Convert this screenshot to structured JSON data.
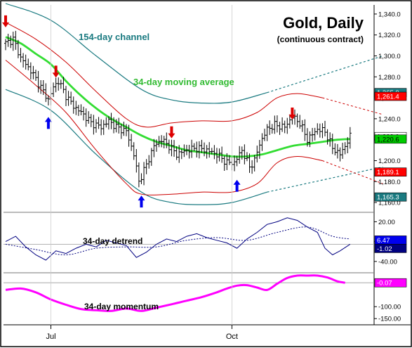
{
  "title": "Gold, Daily",
  "subtitle": "(continuous contract)",
  "labels": {
    "channel": "154-day channel",
    "moving_average": "34-day moving average",
    "detrend": "34-day detrend",
    "momentum": "34-day momentum"
  },
  "colors": {
    "frame": "#000000",
    "price_bar": "#000000",
    "channel": "#1a7a80",
    "band": "#cc0000",
    "moving_average": "#33dd33",
    "detrend": "#000080",
    "momentum": "#ff00ff",
    "up_arrow": "#0000ee",
    "down_arrow": "#dd0000",
    "ma_label_text": "#33bb33",
    "channel_label_text": "#1a7a80",
    "tag_upper_channel": "#1a7a80",
    "tag_upper_band": "#ff0000",
    "tag_price": "#ffffff",
    "tag_ma": "#00cc00",
    "tag_lower_band": "#ff0000",
    "tag_lower_channel": "#1a7a80",
    "tag_detrend_a": "#0000ee",
    "tag_detrend_b": "#000080",
    "tag_momentum": "#ff00ff"
  },
  "x_ticks": [
    "Jul",
    "Oct"
  ],
  "price_ticks": [
    "1,340.0",
    "1,320.0",
    "1,300.0",
    "1,280.0",
    "1,260.0",
    "1,240.0",
    "1,220.0",
    "1,200.0",
    "1,180.0",
    "1,160.0"
  ],
  "detrend_ticks": [
    "20.00",
    "-10.00",
    "-40.00"
  ],
  "momentum_ticks": [
    "-100.00",
    "-150.00"
  ],
  "value_tags": [
    {
      "key": "upper_channel",
      "text": "1,265.0"
    },
    {
      "key": "upper_band",
      "text": "1,261.4"
    },
    {
      "key": "price",
      "text": "1,223.0"
    },
    {
      "key": "ma",
      "text": "1,220.6"
    },
    {
      "key": "lower_band",
      "text": "1,189.1"
    },
    {
      "key": "lower_channel",
      "text": "1,165.3"
    }
  ],
  "detrend_tags": [
    {
      "key": "detrend_a",
      "text": "6.47"
    },
    {
      "key": "detrend_b",
      "text": "-1.02"
    }
  ],
  "momentum_tags": [
    {
      "key": "momentum",
      "text": "-0.07"
    }
  ],
  "chart_data": {
    "type": "ohlc_with_indicators",
    "price_range": [
      1152,
      1348
    ],
    "bars": 140,
    "bar_x_range": [
      0,
      139
    ],
    "x_tick_positions": {
      "Jul": 18,
      "Oct": 90
    },
    "price_close": [
      [
        0,
        1312
      ],
      [
        3,
        1316
      ],
      [
        6,
        1298
      ],
      [
        10,
        1286
      ],
      [
        14,
        1270
      ],
      [
        17,
        1258
      ],
      [
        19,
        1270
      ],
      [
        21,
        1276
      ],
      [
        24,
        1262
      ],
      [
        27,
        1252
      ],
      [
        31,
        1244
      ],
      [
        34,
        1236
      ],
      [
        38,
        1232
      ],
      [
        41,
        1238
      ],
      [
        44,
        1232
      ],
      [
        48,
        1228
      ],
      [
        51,
        1206
      ],
      [
        53,
        1180
      ],
      [
        56,
        1196
      ],
      [
        59,
        1214
      ],
      [
        62,
        1220
      ],
      [
        65,
        1214
      ],
      [
        68,
        1206
      ],
      [
        72,
        1210
      ],
      [
        76,
        1212
      ],
      [
        80,
        1210
      ],
      [
        84,
        1206
      ],
      [
        88,
        1198
      ],
      [
        91,
        1198
      ],
      [
        94,
        1210
      ],
      [
        97,
        1194
      ],
      [
        99,
        1200
      ],
      [
        101,
        1216
      ],
      [
        104,
        1230
      ],
      [
        107,
        1234
      ],
      [
        111,
        1232
      ],
      [
        114,
        1242
      ],
      [
        117,
        1236
      ],
      [
        120,
        1220
      ],
      [
        124,
        1230
      ],
      [
        127,
        1228
      ],
      [
        130,
        1212
      ],
      [
        133,
        1206
      ],
      [
        135,
        1214
      ],
      [
        137,
        1223
      ]
    ],
    "ma34": [
      [
        0,
        1318
      ],
      [
        6,
        1312
      ],
      [
        12,
        1302
      ],
      [
        18,
        1292
      ],
      [
        24,
        1276
      ],
      [
        30,
        1262
      ],
      [
        36,
        1250
      ],
      [
        42,
        1240
      ],
      [
        48,
        1232
      ],
      [
        54,
        1224
      ],
      [
        60,
        1218
      ],
      [
        66,
        1214
      ],
      [
        72,
        1210
      ],
      [
        78,
        1208
      ],
      [
        84,
        1206
      ],
      [
        90,
        1204
      ],
      [
        96,
        1204
      ],
      [
        102,
        1206
      ],
      [
        108,
        1210
      ],
      [
        114,
        1214
      ],
      [
        120,
        1216
      ],
      [
        126,
        1218
      ],
      [
        132,
        1220
      ],
      [
        137,
        1220.6
      ]
    ],
    "channel_upper": [
      [
        0,
        1350
      ],
      [
        18,
        1334
      ],
      [
        36,
        1300
      ],
      [
        54,
        1268
      ],
      [
        66,
        1258
      ],
      [
        78,
        1255
      ],
      [
        90,
        1256
      ],
      [
        104,
        1265
      ]
    ],
    "channel_upper_projection": [
      [
        104,
        1265
      ],
      [
        150,
        1300
      ]
    ],
    "channel_lower": [
      [
        0,
        1268
      ],
      [
        18,
        1248
      ],
      [
        36,
        1206
      ],
      [
        54,
        1170
      ],
      [
        66,
        1160
      ],
      [
        78,
        1158
      ],
      [
        90,
        1160
      ],
      [
        104,
        1170
      ]
    ],
    "channel_lower_projection": [
      [
        104,
        1170
      ],
      [
        150,
        1194
      ]
    ],
    "band_upper": [
      [
        0,
        1332
      ],
      [
        12,
        1316
      ],
      [
        24,
        1294
      ],
      [
        36,
        1266
      ],
      [
        48,
        1240
      ],
      [
        56,
        1232
      ],
      [
        66,
        1236
      ],
      [
        78,
        1238
      ],
      [
        90,
        1238
      ],
      [
        100,
        1246
      ],
      [
        108,
        1260
      ],
      [
        116,
        1264
      ],
      [
        126,
        1260
      ]
    ],
    "band_upper_projection": [
      [
        126,
        1260
      ],
      [
        150,
        1244
      ]
    ],
    "band_lower": [
      [
        0,
        1296
      ],
      [
        12,
        1272
      ],
      [
        24,
        1246
      ],
      [
        36,
        1210
      ],
      [
        48,
        1178
      ],
      [
        54,
        1168
      ],
      [
        66,
        1168
      ],
      [
        78,
        1170
      ],
      [
        90,
        1170
      ],
      [
        100,
        1178
      ],
      [
        108,
        1198
      ],
      [
        116,
        1204
      ],
      [
        126,
        1200
      ]
    ],
    "band_lower_projection": [
      [
        126,
        1200
      ],
      [
        150,
        1178
      ]
    ],
    "up_arrows": [
      [
        17,
        1235
      ],
      [
        54,
        1160
      ],
      [
        92,
        1175
      ]
    ],
    "down_arrows": [
      [
        0,
        1334
      ],
      [
        20,
        1286
      ],
      [
        66,
        1228
      ],
      [
        114,
        1246
      ]
    ],
    "detrend_range": [
      -55,
      30
    ],
    "detrend_baseline": -14,
    "detrend_ref": -40,
    "detrend": [
      [
        0,
        -10
      ],
      [
        4,
        -2
      ],
      [
        8,
        -18
      ],
      [
        12,
        -30
      ],
      [
        16,
        -38
      ],
      [
        20,
        -24
      ],
      [
        24,
        -28
      ],
      [
        28,
        -20
      ],
      [
        32,
        -14
      ],
      [
        36,
        -18
      ],
      [
        40,
        -8
      ],
      [
        44,
        -12
      ],
      [
        48,
        -16
      ],
      [
        52,
        -34
      ],
      [
        56,
        -26
      ],
      [
        60,
        -14
      ],
      [
        64,
        -6
      ],
      [
        68,
        -10
      ],
      [
        72,
        -2
      ],
      [
        76,
        2
      ],
      [
        80,
        -4
      ],
      [
        84,
        -8
      ],
      [
        88,
        -12
      ],
      [
        92,
        -20
      ],
      [
        96,
        -6
      ],
      [
        100,
        4
      ],
      [
        104,
        16
      ],
      [
        108,
        20
      ],
      [
        112,
        26
      ],
      [
        116,
        22
      ],
      [
        120,
        12
      ],
      [
        124,
        4
      ],
      [
        127,
        -20
      ],
      [
        130,
        -30
      ],
      [
        133,
        -24
      ],
      [
        137,
        -14
      ]
    ],
    "detrend_ma": [
      [
        0,
        -14
      ],
      [
        12,
        -22
      ],
      [
        24,
        -30
      ],
      [
        36,
        -20
      ],
      [
        48,
        -18
      ],
      [
        60,
        -18
      ],
      [
        72,
        -8
      ],
      [
        84,
        -4
      ],
      [
        96,
        -8
      ],
      [
        108,
        4
      ],
      [
        120,
        12
      ],
      [
        130,
        -2
      ],
      [
        137,
        -6
      ]
    ],
    "momentum_range": [
      -170,
      30
    ],
    "momentum_ref": -0.07,
    "momentum": [
      [
        0,
        -30
      ],
      [
        6,
        -24
      ],
      [
        12,
        -40
      ],
      [
        18,
        -70
      ],
      [
        24,
        -92
      ],
      [
        30,
        -110
      ],
      [
        36,
        -115
      ],
      [
        42,
        -118
      ],
      [
        48,
        -108
      ],
      [
        54,
        -118
      ],
      [
        60,
        -104
      ],
      [
        66,
        -90
      ],
      [
        72,
        -75
      ],
      [
        78,
        -60
      ],
      [
        84,
        -40
      ],
      [
        88,
        -24
      ],
      [
        92,
        -12
      ],
      [
        96,
        -10
      ],
      [
        100,
        -20
      ],
      [
        104,
        -30
      ],
      [
        108,
        -4
      ],
      [
        112,
        20
      ],
      [
        116,
        30
      ],
      [
        120,
        30
      ],
      [
        124,
        30
      ],
      [
        128,
        22
      ],
      [
        132,
        6
      ],
      [
        135,
        0
      ]
    ]
  }
}
